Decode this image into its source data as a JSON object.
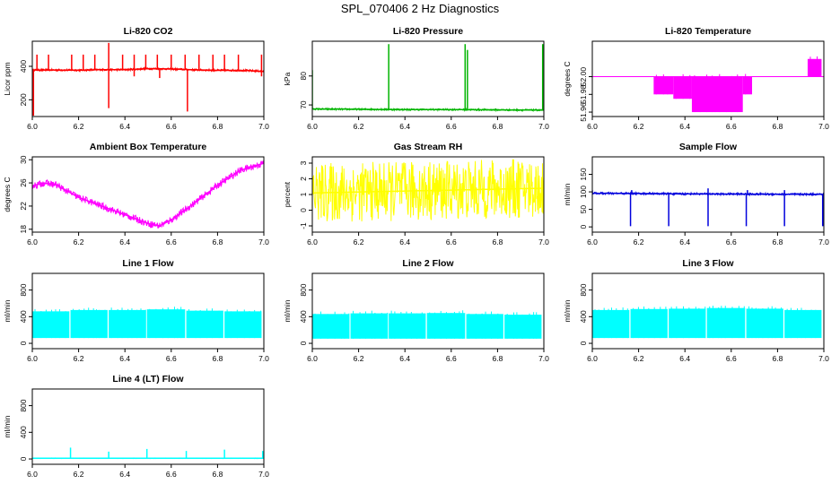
{
  "figure": {
    "title": "SPL_070406  2 Hz Diagnostics"
  },
  "chart_data": [
    {
      "type": "line",
      "title": "Li-820 CO2",
      "xlabel": "",
      "ylabel": "Licor ppm",
      "color": "#ff0000",
      "xlim": [
        6.0,
        7.0
      ],
      "ylim": [
        100,
        550
      ],
      "x_ticks": [
        6.0,
        6.2,
        6.4,
        6.6,
        6.8,
        7.0
      ],
      "x_tick_labels": [
        "6.0",
        "6.2",
        "6.4",
        "6.6",
        "6.8",
        "7.0"
      ],
      "y_ticks": [
        200,
        400
      ],
      "y_tick_labels": [
        "200",
        "400"
      ],
      "series": [
        {
          "x": [
            6.0,
            6.1,
            6.2,
            6.3,
            6.4,
            6.5,
            6.6,
            6.7,
            6.8,
            6.9,
            7.0
          ],
          "values": [
            378,
            378,
            377,
            380,
            380,
            386,
            384,
            379,
            376,
            376,
            370
          ]
        }
      ],
      "spikes_up": [
        [
          6.02,
          470
        ],
        [
          6.07,
          470
        ],
        [
          6.17,
          470
        ],
        [
          6.22,
          470
        ],
        [
          6.27,
          470
        ],
        [
          6.33,
          540
        ],
        [
          6.39,
          470
        ],
        [
          6.44,
          470
        ],
        [
          6.49,
          470
        ],
        [
          6.54,
          470
        ],
        [
          6.6,
          470
        ],
        [
          6.66,
          470
        ],
        [
          6.72,
          470
        ],
        [
          6.78,
          470
        ],
        [
          6.83,
          470
        ],
        [
          6.89,
          470
        ],
        [
          6.99,
          470
        ]
      ],
      "spikes_down": [
        [
          6.005,
          105
        ],
        [
          6.33,
          150
        ],
        [
          6.67,
          130
        ],
        [
          6.44,
          340
        ],
        [
          6.55,
          330
        ],
        [
          6.99,
          340
        ]
      ],
      "band": [
        -6,
        6
      ]
    },
    {
      "type": "line",
      "title": "Li-820 Pressure",
      "xlabel": "",
      "ylabel": "kPa",
      "color": "#00b400",
      "xlim": [
        6.0,
        7.0
      ],
      "ylim": [
        66,
        92
      ],
      "x_ticks": [
        6.0,
        6.2,
        6.4,
        6.6,
        6.8,
        7.0
      ],
      "x_tick_labels": [
        "6.0",
        "6.2",
        "6.4",
        "6.6",
        "6.8",
        "7.0"
      ],
      "y_ticks": [
        70,
        80
      ],
      "y_tick_labels": [
        "70",
        "80"
      ],
      "series": [
        {
          "x": [
            6.0,
            6.2,
            6.4,
            6.6,
            6.8,
            7.0
          ],
          "values": [
            68.6,
            68.5,
            68.4,
            68.4,
            68.3,
            68.2
          ]
        }
      ],
      "spikes_up": [
        [
          6.0,
          82
        ],
        [
          6.33,
          91
        ],
        [
          6.66,
          91
        ],
        [
          6.67,
          89
        ],
        [
          6.995,
          91
        ]
      ],
      "spikes_down": [],
      "band": [
        -0.3,
        0.3
      ]
    },
    {
      "type": "line",
      "title": "Li-820 Temperature",
      "xlabel": "",
      "ylabel": "degrees C",
      "color": "#ff00ff",
      "xlim": [
        6.0,
        7.0
      ],
      "ylim": [
        51.955,
        52.04
      ],
      "x_ticks": [
        6.0,
        6.2,
        6.4,
        6.6,
        6.8,
        7.0
      ],
      "x_tick_labels": [
        "6.0",
        "6.2",
        "6.4",
        "6.6",
        "6.8",
        "7.0"
      ],
      "y_ticks": [
        51.96,
        51.98,
        52.0
      ],
      "y_tick_labels": [
        "51.96",
        "51.98",
        "52.00"
      ],
      "baseline": 52.0,
      "blocks": [
        {
          "x0": 6.265,
          "x1": 6.35,
          "top": 52.0,
          "bottom": 51.98
        },
        {
          "x0": 6.35,
          "x1": 6.43,
          "top": 52.0,
          "bottom": 51.975
        },
        {
          "x0": 6.43,
          "x1": 6.65,
          "top": 52.0,
          "bottom": 51.96
        },
        {
          "x0": 6.65,
          "x1": 6.69,
          "top": 52.0,
          "bottom": 51.98
        },
        {
          "x0": 6.93,
          "x1": 6.99,
          "top": 52.02,
          "bottom": 52.0
        }
      ],
      "spikes_up": [],
      "spikes_down": [],
      "band": [
        0,
        0
      ]
    },
    {
      "type": "line",
      "title": "Ambient Box Temperature",
      "xlabel": "",
      "ylabel": "degrees C",
      "color": "#ff00ff",
      "xlim": [
        6.0,
        7.0
      ],
      "ylim": [
        17.5,
        30.5
      ],
      "x_ticks": [
        6.0,
        6.2,
        6.4,
        6.6,
        6.8,
        7.0
      ],
      "x_tick_labels": [
        "6.0",
        "6.2",
        "6.4",
        "6.6",
        "6.8",
        "7.0"
      ],
      "y_ticks": [
        18,
        22,
        26,
        30
      ],
      "y_tick_labels": [
        "18",
        "22",
        "26",
        "30"
      ],
      "series": [
        {
          "x": [
            6.0,
            6.05,
            6.1,
            6.2,
            6.3,
            6.4,
            6.5,
            6.55,
            6.6,
            6.7,
            6.8,
            6.9,
            7.0
          ],
          "values": [
            25.5,
            26.0,
            25.7,
            23.5,
            22.0,
            20.5,
            19.0,
            18.6,
            19.6,
            22.5,
            25.6,
            28.2,
            29.4
          ]
        }
      ],
      "spikes_up": [],
      "spikes_down": [],
      "band": [
        -0.6,
        0.6
      ]
    },
    {
      "type": "line",
      "title": "Gas Stream RH",
      "xlabel": "",
      "ylabel": "percent",
      "color": "#ffff00",
      "xlim": [
        6.0,
        7.0
      ],
      "ylim": [
        -1.4,
        3.4
      ],
      "x_ticks": [
        6.0,
        6.2,
        6.4,
        6.6,
        6.8,
        7.0
      ],
      "x_tick_labels": [
        "6.0",
        "6.2",
        "6.4",
        "6.6",
        "6.8",
        "7.0"
      ],
      "y_ticks": [
        -1,
        0,
        1,
        2,
        3
      ],
      "y_tick_labels": [
        "-1",
        "0",
        "1",
        "2",
        "3"
      ],
      "series": [
        {
          "x": [
            6.0,
            6.5,
            7.0
          ],
          "values": [
            1.1,
            1.25,
            1.4
          ]
        }
      ],
      "spikes_up": [],
      "spikes_down": [],
      "band": [
        -1.9,
        1.9
      ]
    },
    {
      "type": "line",
      "title": "Sample Flow",
      "xlabel": "",
      "ylabel": "ml/min",
      "color": "#0000dd",
      "xlim": [
        6.0,
        7.0
      ],
      "ylim": [
        -15,
        200
      ],
      "x_ticks": [
        6.0,
        6.2,
        6.4,
        6.6,
        6.8,
        7.0
      ],
      "x_tick_labels": [
        "6.0",
        "6.2",
        "6.4",
        "6.6",
        "6.8",
        "7.0"
      ],
      "y_ticks": [
        0,
        50,
        100,
        150
      ],
      "y_tick_labels": [
        "0",
        "50",
        "100",
        "150"
      ],
      "series": [
        {
          "x": [
            6.0,
            6.5,
            7.0
          ],
          "values": [
            96,
            94,
            93
          ]
        }
      ],
      "spikes_up": [
        [
          6.17,
          105
        ],
        [
          6.5,
          110
        ],
        [
          6.67,
          105
        ],
        [
          6.83,
          105
        ],
        [
          6.0,
          105
        ]
      ],
      "spikes_down": [
        [
          6.165,
          2
        ],
        [
          6.33,
          2
        ],
        [
          6.5,
          2
        ],
        [
          6.665,
          2
        ],
        [
          6.83,
          2
        ],
        [
          6.995,
          2
        ]
      ],
      "band": [
        -3,
        3
      ]
    },
    {
      "type": "line",
      "title": "Line 1 Flow",
      "xlabel": "",
      "ylabel": "ml/min",
      "color": "#00ffff",
      "xlim": [
        6.0,
        7.0
      ],
      "ylim": [
        -80,
        1050
      ],
      "x_ticks": [
        6.0,
        6.2,
        6.4,
        6.6,
        6.8,
        7.0
      ],
      "x_tick_labels": [
        "6.0",
        "6.2",
        "6.4",
        "6.6",
        "6.8",
        "7.0"
      ],
      "y_ticks": [
        0,
        400,
        800
      ],
      "y_tick_labels": [
        "0",
        "400",
        "800"
      ],
      "blocks": [
        {
          "x0": 6.0,
          "x1": 6.16,
          "top": 480,
          "bottom": 80
        },
        {
          "x0": 6.165,
          "x1": 6.325,
          "top": 500,
          "bottom": 80
        },
        {
          "x0": 6.33,
          "x1": 6.49,
          "top": 500,
          "bottom": 80
        },
        {
          "x0": 6.495,
          "x1": 6.66,
          "top": 510,
          "bottom": 80
        },
        {
          "x0": 6.665,
          "x1": 6.825,
          "top": 490,
          "bottom": 80
        },
        {
          "x0": 6.83,
          "x1": 6.99,
          "top": 480,
          "bottom": 80
        }
      ],
      "spikes_up": [],
      "spikes_down": [],
      "band": [
        0,
        0
      ]
    },
    {
      "type": "line",
      "title": "Line 2 Flow",
      "xlabel": "",
      "ylabel": "ml/min",
      "color": "#00ffff",
      "xlim": [
        6.0,
        7.0
      ],
      "ylim": [
        -80,
        1050
      ],
      "x_ticks": [
        6.0,
        6.2,
        6.4,
        6.6,
        6.8,
        7.0
      ],
      "x_tick_labels": [
        "6.0",
        "6.2",
        "6.4",
        "6.6",
        "6.8",
        "7.0"
      ],
      "y_ticks": [
        0,
        400,
        800
      ],
      "y_tick_labels": [
        "0",
        "400",
        "800"
      ],
      "blocks": [
        {
          "x0": 6.0,
          "x1": 6.16,
          "top": 440,
          "bottom": 70
        },
        {
          "x0": 6.165,
          "x1": 6.325,
          "top": 450,
          "bottom": 70
        },
        {
          "x0": 6.33,
          "x1": 6.49,
          "top": 450,
          "bottom": 70
        },
        {
          "x0": 6.495,
          "x1": 6.66,
          "top": 455,
          "bottom": 70
        },
        {
          "x0": 6.665,
          "x1": 6.825,
          "top": 440,
          "bottom": 70
        },
        {
          "x0": 6.83,
          "x1": 6.99,
          "top": 430,
          "bottom": 70
        }
      ],
      "spikes_up": [],
      "spikes_down": [],
      "band": [
        0,
        0
      ]
    },
    {
      "type": "line",
      "title": "Line 3 Flow",
      "xlabel": "",
      "ylabel": "ml/min",
      "color": "#00ffff",
      "xlim": [
        6.0,
        7.0
      ],
      "ylim": [
        -80,
        1050
      ],
      "x_ticks": [
        6.0,
        6.2,
        6.4,
        6.6,
        6.8,
        7.0
      ],
      "x_tick_labels": [
        "6.0",
        "6.2",
        "6.4",
        "6.6",
        "6.8",
        "7.0"
      ],
      "y_ticks": [
        0,
        400,
        800
      ],
      "y_tick_labels": [
        "0",
        "400",
        "800"
      ],
      "blocks": [
        {
          "x0": 6.0,
          "x1": 6.16,
          "top": 500,
          "bottom": 80
        },
        {
          "x0": 6.165,
          "x1": 6.325,
          "top": 515,
          "bottom": 80
        },
        {
          "x0": 6.33,
          "x1": 6.49,
          "top": 520,
          "bottom": 80
        },
        {
          "x0": 6.495,
          "x1": 6.66,
          "top": 530,
          "bottom": 80
        },
        {
          "x0": 6.665,
          "x1": 6.825,
          "top": 520,
          "bottom": 80
        },
        {
          "x0": 6.83,
          "x1": 6.99,
          "top": 500,
          "bottom": 80
        }
      ],
      "spikes_up": [],
      "spikes_down": [],
      "band": [
        0,
        0
      ]
    },
    {
      "type": "line",
      "title": "Line 4 (LT) Flow",
      "xlabel": "",
      "ylabel": "ml/min",
      "color": "#00ffff",
      "xlim": [
        6.0,
        7.0
      ],
      "ylim": [
        -80,
        1050
      ],
      "x_ticks": [
        6.0,
        6.2,
        6.4,
        6.6,
        6.8,
        7.0
      ],
      "x_tick_labels": [
        "6.0",
        "6.2",
        "6.4",
        "6.6",
        "6.8",
        "7.0"
      ],
      "y_ticks": [
        0,
        400,
        800
      ],
      "y_tick_labels": [
        "0",
        "400",
        "800"
      ],
      "series": [
        {
          "x": [
            6.0,
            7.0
          ],
          "values": [
            10,
            10
          ]
        }
      ],
      "spikes_up": [
        [
          6.165,
          170
        ],
        [
          6.33,
          110
        ],
        [
          6.495,
          150
        ],
        [
          6.665,
          120
        ],
        [
          6.83,
          140
        ],
        [
          6.995,
          120
        ]
      ],
      "spikes_down": [],
      "band": [
        -4,
        4
      ]
    }
  ]
}
